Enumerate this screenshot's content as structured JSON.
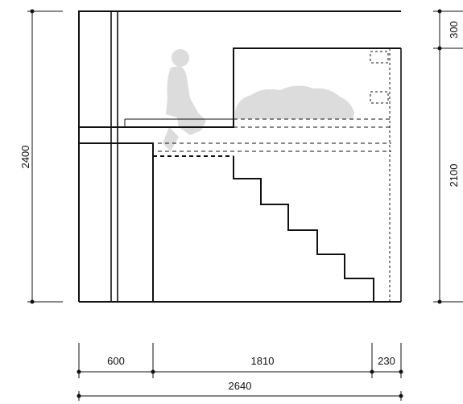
{
  "dimensions": {
    "total_height": "2400",
    "lower_height": "2100",
    "upper_height": "300",
    "left_width": "600",
    "middle_width": "1810",
    "right_width": "230",
    "total_width": "2640"
  },
  "colors": {
    "line": "#111111",
    "figure": "#dcdcdc"
  },
  "icons": [
    "seated-person-figure",
    "reclining-person-figure"
  ]
}
